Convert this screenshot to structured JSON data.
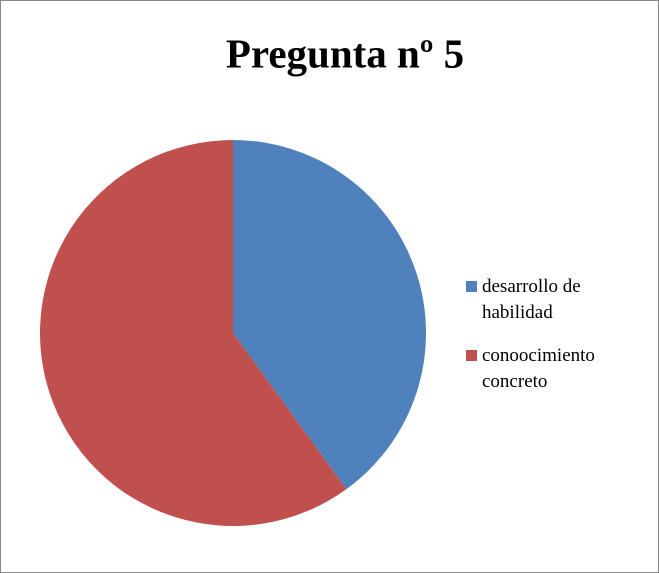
{
  "chart_data": {
    "type": "pie",
    "title": "Pregunta nº 5",
    "categories": [
      "desarrollo de habilidad",
      "conoocimiento concreto"
    ],
    "values": [
      40,
      60
    ],
    "colors": [
      "#4f81bd",
      "#c0504d"
    ],
    "legend": "right"
  }
}
